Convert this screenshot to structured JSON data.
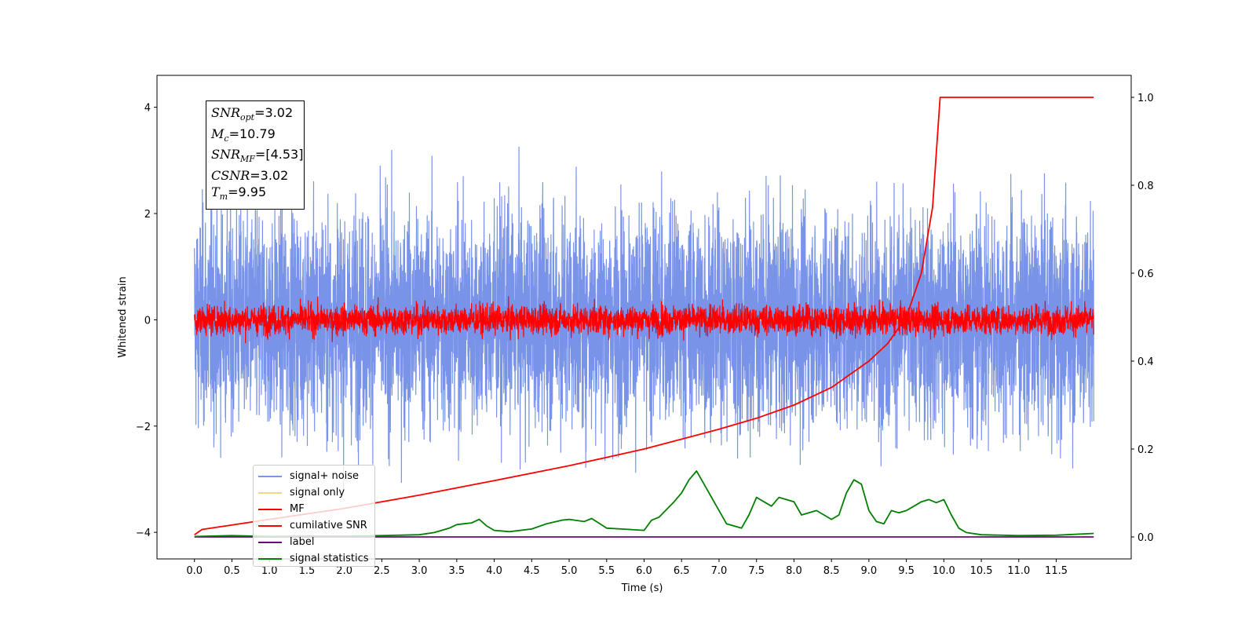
{
  "chart_data": {
    "type": "line",
    "xlabel": "Time (s)",
    "ylabel": "Whitened strain",
    "xlim": [
      -0.5,
      12.5
    ],
    "ylim": [
      -4.5,
      4.6
    ],
    "y2lim": [
      -0.05,
      1.05
    ],
    "xticks": [
      0.0,
      0.5,
      1.0,
      1.5,
      2.0,
      2.5,
      3.0,
      3.5,
      4.0,
      4.5,
      5.0,
      5.5,
      6.0,
      6.5,
      7.0,
      7.5,
      8.0,
      8.5,
      9.0,
      9.5,
      10.0,
      10.5,
      11.0,
      11.5
    ],
    "xtick_labels": [
      "0.0",
      "0.5",
      "1.0",
      "1.5",
      "2.0",
      "2.5",
      "3.0",
      "3.5",
      "4.0",
      "4.5",
      "5.0",
      "5.5",
      "6.0",
      "6.5",
      "7.0",
      "7.5",
      "8.0",
      "8.5",
      "9.0",
      "9.5",
      "10.0",
      "10.5",
      "11.0",
      "11.5"
    ],
    "yticks": [
      -4,
      -2,
      0,
      2,
      4
    ],
    "ytick_labels": [
      "−4",
      "−2",
      "0",
      "2",
      "4"
    ],
    "y2ticks": [
      0.0,
      0.2,
      0.4,
      0.6,
      0.8,
      1.0
    ],
    "y2tick_labels": [
      "0.0",
      "0.2",
      "0.4",
      "0.6",
      "0.8",
      "1.0"
    ],
    "legend_position": "lower-left",
    "annotation": {
      "lines": [
        {
          "sym": "SNR",
          "sub": "opt",
          "text": "=3.02"
        },
        {
          "sym": "M",
          "sub": "c",
          "text": "=10.79"
        },
        {
          "sym": "SNR",
          "sub": "MF",
          "text": "=[4.53]"
        },
        {
          "sym": "CSNR",
          "sub": "",
          "text": "=3.02"
        },
        {
          "sym": "T",
          "sub": "m",
          "text": "=9.95"
        }
      ]
    },
    "series": [
      {
        "name": "signal+ noise",
        "color": "#7893e8",
        "axis": "left",
        "style": "noise",
        "x_range": [
          0.0,
          12.0
        ],
        "mean": 0.0,
        "envelope_approx": [
          -2.6,
          2.6
        ],
        "extremes_approx": [
          4.15,
          -4.0
        ]
      },
      {
        "name": "signal only",
        "color": "#f4d589",
        "axis": "left",
        "style": "line",
        "x": [
          0.0,
          12.0
        ],
        "y": [
          0.0,
          0.0
        ]
      },
      {
        "name": "MF",
        "color": "#ff0000",
        "axis": "left",
        "style": "noise",
        "x_range": [
          0.0,
          12.0
        ],
        "mean": 0.0,
        "envelope_approx": [
          -0.35,
          0.35
        ],
        "extremes_approx": [
          1.0,
          -0.45
        ]
      },
      {
        "name": "cumilative SNR",
        "color": "#ff0000",
        "axis": "right",
        "style": "line",
        "x": [
          0.0,
          0.1,
          1.0,
          2.0,
          3.0,
          4.0,
          5.0,
          6.0,
          7.0,
          7.5,
          8.0,
          8.5,
          9.0,
          9.25,
          9.5,
          9.7,
          9.85,
          9.95,
          10.5,
          11.0,
          11.5,
          12.0
        ],
        "y": [
          0.005,
          0.017,
          0.04,
          0.065,
          0.095,
          0.128,
          0.162,
          0.2,
          0.245,
          0.27,
          0.3,
          0.34,
          0.4,
          0.44,
          0.5,
          0.6,
          0.75,
          1.0,
          1.0,
          1.0,
          1.0,
          1.0
        ]
      },
      {
        "name": "label",
        "color": "#6a0a78",
        "axis": "right",
        "style": "line",
        "x": [
          0.0,
          12.0
        ],
        "y": [
          0.0,
          0.0
        ]
      },
      {
        "name": "signal statistics",
        "color": "#008000",
        "axis": "right",
        "style": "line",
        "x": [
          0.0,
          0.5,
          1.0,
          1.5,
          2.0,
          2.5,
          3.0,
          3.2,
          3.4,
          3.5,
          3.6,
          3.7,
          3.8,
          3.9,
          4.0,
          4.2,
          4.5,
          4.7,
          4.9,
          5.0,
          5.2,
          5.3,
          5.5,
          5.7,
          6.0,
          6.1,
          6.2,
          6.4,
          6.5,
          6.6,
          6.7,
          6.8,
          6.9,
          7.1,
          7.3,
          7.4,
          7.5,
          7.6,
          7.7,
          7.8,
          8.0,
          8.1,
          8.3,
          8.5,
          8.6,
          8.7,
          8.8,
          8.9,
          9.0,
          9.1,
          9.2,
          9.3,
          9.4,
          9.5,
          9.6,
          9.7,
          9.8,
          9.9,
          10.0,
          10.1,
          10.2,
          10.3,
          10.5,
          11.0,
          11.5,
          12.0
        ],
        "y": [
          0.001,
          0.003,
          0.001,
          0.002,
          0.002,
          0.003,
          0.005,
          0.01,
          0.02,
          0.028,
          0.03,
          0.032,
          0.04,
          0.025,
          0.015,
          0.012,
          0.018,
          0.03,
          0.038,
          0.04,
          0.035,
          0.042,
          0.02,
          0.018,
          0.015,
          0.038,
          0.045,
          0.08,
          0.1,
          0.13,
          0.15,
          0.12,
          0.09,
          0.03,
          0.02,
          0.05,
          0.09,
          0.08,
          0.07,
          0.09,
          0.08,
          0.05,
          0.06,
          0.04,
          0.05,
          0.1,
          0.13,
          0.12,
          0.06,
          0.035,
          0.03,
          0.06,
          0.055,
          0.06,
          0.07,
          0.08,
          0.085,
          0.078,
          0.085,
          0.05,
          0.02,
          0.01,
          0.005,
          0.003,
          0.004,
          0.008
        ]
      }
    ]
  }
}
